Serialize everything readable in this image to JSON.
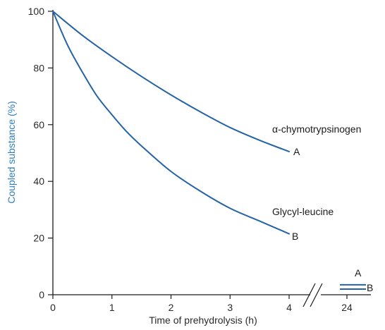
{
  "colors": {
    "series": "#2563a8",
    "axis": "#1a1a1a",
    "ylabel": "#2e7fbf"
  },
  "chart_data": {
    "type": "line",
    "xlabel": "Time of prehydrolysis (h)",
    "ylabel": "Coupled substance (%)",
    "ylim": [
      0,
      100
    ],
    "xlim": [
      0,
      4
    ],
    "x_ticks": [
      "0",
      "1",
      "2",
      "3",
      "4"
    ],
    "y_ticks": [
      "0",
      "20",
      "40",
      "60",
      "80",
      "100"
    ],
    "axis_break_label": "24",
    "series": [
      {
        "name": "A",
        "label": "α-chymotrypsinogen",
        "x": [
          0,
          0.5,
          1,
          1.5,
          2,
          2.5,
          3,
          3.5,
          4
        ],
        "y": [
          100,
          91.5,
          84,
          77,
          70.5,
          64.5,
          59,
          54.5,
          50.5
        ],
        "value_at_24h": 3.5
      },
      {
        "name": "B",
        "label": "Glycyl-leucine",
        "x": [
          0,
          0.25,
          0.5,
          0.75,
          1,
          1.25,
          1.5,
          2,
          2.5,
          3,
          3.5,
          4
        ],
        "y": [
          100,
          88,
          78.5,
          70,
          63.5,
          57.5,
          52.5,
          43.5,
          36.5,
          30.5,
          26,
          21.5
        ],
        "value_at_24h": 2
      }
    ]
  }
}
